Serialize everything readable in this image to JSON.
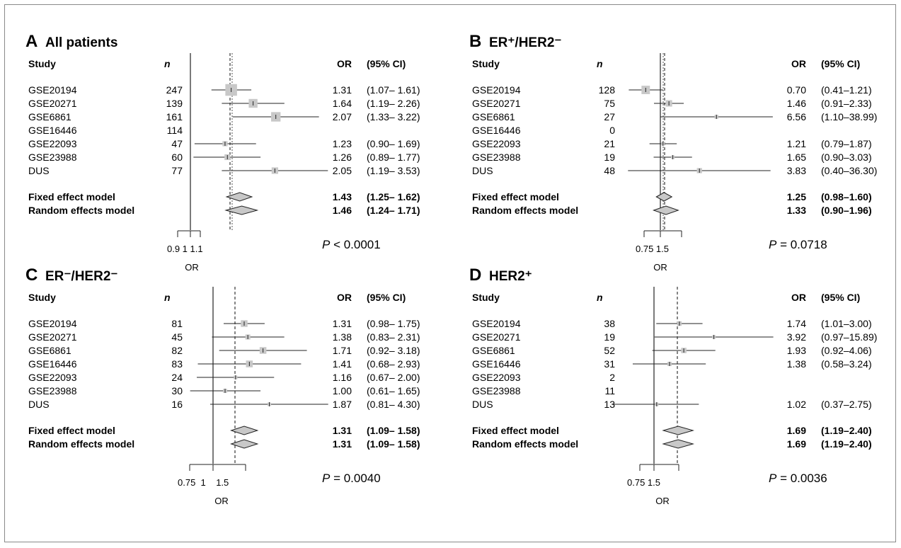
{
  "chart_data": [
    {
      "type": "forest",
      "panel": "A",
      "title": "All patients",
      "headers": {
        "study": "Study",
        "n": "n",
        "or": "OR",
        "ci": "(95% CI)"
      },
      "studies": [
        {
          "name": "GSE20194",
          "n": "247",
          "or": 1.31,
          "lo": 1.07,
          "hi": 1.61,
          "or_text": "1.31",
          "ci_text": "(1.07– 1.61)"
        },
        {
          "name": "GSE20271",
          "n": "139",
          "or": 1.64,
          "lo": 1.19,
          "hi": 2.26,
          "or_text": "1.64",
          "ci_text": "(1.19– 2.26)"
        },
        {
          "name": "GSE6861",
          "n": "161",
          "or": 2.07,
          "lo": 1.33,
          "hi": 3.22,
          "or_text": "2.07",
          "ci_text": "(1.33– 3.22)"
        },
        {
          "name": "GSE16446",
          "n": "114",
          "or": null,
          "lo": null,
          "hi": null,
          "or_text": "",
          "ci_text": ""
        },
        {
          "name": "GSE22093",
          "n": "47",
          "or": 1.23,
          "lo": 0.9,
          "hi": 1.69,
          "or_text": "1.23",
          "ci_text": "(0.90– 1.69)"
        },
        {
          "name": "GSE23988",
          "n": "60",
          "or": 1.26,
          "lo": 0.89,
          "hi": 1.77,
          "or_text": "1.26",
          "ci_text": "(0.89– 1.77)"
        },
        {
          "name": "DUS",
          "n": "77",
          "or": 2.05,
          "lo": 1.19,
          "hi": 3.53,
          "or_text": "2.05",
          "ci_text": "(1.19– 3.53)"
        }
      ],
      "fixed": {
        "label": "Fixed effect model",
        "or": 1.43,
        "lo": 1.25,
        "hi": 1.62,
        "or_text": "1.43",
        "ci_text": "(1.25– 1.62)"
      },
      "random": {
        "label": "Random effects model",
        "or": 1.46,
        "lo": 1.24,
        "hi": 1.71,
        "or_text": "1.46",
        "ci_text": "(1.24– 1.71)"
      },
      "ticks": [
        0.9,
        1,
        1.1
      ],
      "tick_labels": "0.9 1 1.1",
      "xlabel": "OR",
      "p_label": "P",
      "p_text": " < 0.0001",
      "log_x": true
    },
    {
      "type": "forest",
      "panel": "B",
      "title": "ER⁺/HER2⁻",
      "headers": {
        "study": "Study",
        "n": "n",
        "or": "OR",
        "ci": "(95% CI)"
      },
      "studies": [
        {
          "name": "GSE20194",
          "n": "128",
          "or": 0.7,
          "lo": 0.41,
          "hi": 1.21,
          "or_text": "0.70",
          "ci_text": "(0.41–1.21)"
        },
        {
          "name": "GSE20271",
          "n": "75",
          "or": 1.46,
          "lo": 0.91,
          "hi": 2.33,
          "or_text": "1.46",
          "ci_text": "(0.91–2.33)"
        },
        {
          "name": "GSE6861",
          "n": "27",
          "or": 6.56,
          "lo": 1.1,
          "hi": 38.99,
          "or_text": "6.56",
          "ci_text": "(1.10–38.99)"
        },
        {
          "name": "GSE16446",
          "n": "0",
          "or": null,
          "lo": null,
          "hi": null,
          "or_text": "",
          "ci_text": ""
        },
        {
          "name": "GSE22093",
          "n": "21",
          "or": 1.21,
          "lo": 0.79,
          "hi": 1.87,
          "or_text": "1.21",
          "ci_text": "(0.79–1.87)"
        },
        {
          "name": "GSE23988",
          "n": "19",
          "or": 1.65,
          "lo": 0.9,
          "hi": 3.03,
          "or_text": "1.65",
          "ci_text": "(0.90–3.03)"
        },
        {
          "name": "DUS",
          "n": "48",
          "or": 3.83,
          "lo": 0.4,
          "hi": 36.3,
          "or_text": "3.83",
          "ci_text": "(0.40–36.30)"
        }
      ],
      "fixed": {
        "label": "Fixed effect model",
        "or": 1.25,
        "lo": 0.98,
        "hi": 1.6,
        "or_text": "1.25",
        "ci_text": "(0.98–1.60)"
      },
      "random": {
        "label": "Random effects model",
        "or": 1.33,
        "lo": 0.9,
        "hi": 1.96,
        "or_text": "1.33",
        "ci_text": "(0.90–1.96)"
      },
      "ticks": [
        0.75,
        1,
        1.5
      ],
      "tick_labels": "0.75 1.5",
      "xlabel": "OR",
      "p_label": "P",
      "p_text": " = 0.0718",
      "log_x": true
    },
    {
      "type": "forest",
      "panel": "C",
      "title": "ER⁻/HER2⁻",
      "headers": {
        "study": "Study",
        "n": "n",
        "or": "OR",
        "ci": "(95% CI)"
      },
      "studies": [
        {
          "name": "GSE20194",
          "n": "81",
          "or": 1.31,
          "lo": 0.98,
          "hi": 1.75,
          "or_text": "1.31",
          "ci_text": "(0.98– 1.75)"
        },
        {
          "name": "GSE20271",
          "n": "45",
          "or": 1.38,
          "lo": 0.83,
          "hi": 2.31,
          "or_text": "1.38",
          "ci_text": "(0.83– 2.31)"
        },
        {
          "name": "GSE6861",
          "n": "82",
          "or": 1.71,
          "lo": 0.92,
          "hi": 3.18,
          "or_text": "1.71",
          "ci_text": "(0.92– 3.18)"
        },
        {
          "name": "GSE16446",
          "n": "83",
          "or": 1.41,
          "lo": 0.68,
          "hi": 2.93,
          "or_text": "1.41",
          "ci_text": "(0.68– 2.93)"
        },
        {
          "name": "GSE22093",
          "n": "24",
          "or": 1.16,
          "lo": 0.67,
          "hi": 2.0,
          "or_text": "1.16",
          "ci_text": "(0.67– 2.00)"
        },
        {
          "name": "GSE23988",
          "n": "30",
          "or": 1.0,
          "lo": 0.61,
          "hi": 1.65,
          "or_text": "1.00",
          "ci_text": "(0.61– 1.65)"
        },
        {
          "name": "DUS",
          "n": "16",
          "or": 1.87,
          "lo": 0.81,
          "hi": 4.3,
          "or_text": "1.87",
          "ci_text": "(0.81– 4.30)"
        }
      ],
      "fixed": {
        "label": "Fixed effect model",
        "or": 1.31,
        "lo": 1.09,
        "hi": 1.58,
        "or_text": "1.31",
        "ci_text": "(1.09– 1.58)"
      },
      "random": {
        "label": "Random effects model",
        "or": 1.31,
        "lo": 1.09,
        "hi": 1.58,
        "or_text": "1.31",
        "ci_text": "(1.09– 1.58)"
      },
      "ticks": [
        0.75,
        1,
        1.5
      ],
      "tick_labels": "0.75  1    1.5",
      "xlabel": "OR",
      "p_label": "P",
      "p_text": " = 0.0040",
      "log_x": true
    },
    {
      "type": "forest",
      "panel": "D",
      "title": "HER2⁺",
      "headers": {
        "study": "Study",
        "n": "n",
        "or": "OR",
        "ci": "(95% CI)"
      },
      "studies": [
        {
          "name": "GSE20194",
          "n": "38",
          "or": 1.74,
          "lo": 1.01,
          "hi": 3.0,
          "or_text": "1.74",
          "ci_text": "(1.01–3.00)"
        },
        {
          "name": "GSE20271",
          "n": "19",
          "or": 3.92,
          "lo": 0.97,
          "hi": 15.89,
          "or_text": "3.92",
          "ci_text": "(0.97–15.89)"
        },
        {
          "name": "GSE6861",
          "n": "52",
          "or": 1.93,
          "lo": 0.92,
          "hi": 4.06,
          "or_text": "1.93",
          "ci_text": "(0.92–4.06)"
        },
        {
          "name": "GSE16446",
          "n": "31",
          "or": 1.38,
          "lo": 0.58,
          "hi": 3.24,
          "or_text": "1.38",
          "ci_text": "(0.58–3.24)"
        },
        {
          "name": "GSE22093",
          "n": "2",
          "or": null,
          "lo": null,
          "hi": null,
          "or_text": "",
          "ci_text": ""
        },
        {
          "name": "GSE23988",
          "n": "11",
          "or": null,
          "lo": null,
          "hi": null,
          "or_text": "",
          "ci_text": ""
        },
        {
          "name": "DUS",
          "n": "13",
          "or": 1.02,
          "lo": 0.37,
          "hi": 2.75,
          "or_text": "1.02",
          "ci_text": "(0.37–2.75)"
        }
      ],
      "fixed": {
        "label": "Fixed effect model",
        "or": 1.69,
        "lo": 1.19,
        "hi": 2.4,
        "or_text": "1.69",
        "ci_text": "(1.19–2.40)"
      },
      "random": {
        "label": "Random effects model",
        "or": 1.69,
        "lo": 1.19,
        "hi": 2.4,
        "or_text": "1.69",
        "ci_text": "(1.19–2.40)"
      },
      "ticks": [
        0.75,
        1,
        1.5
      ],
      "tick_labels": "0.75 1.5",
      "xlabel": "OR",
      "p_label": "P",
      "p_text": " = 0.0036",
      "log_x": true
    }
  ]
}
